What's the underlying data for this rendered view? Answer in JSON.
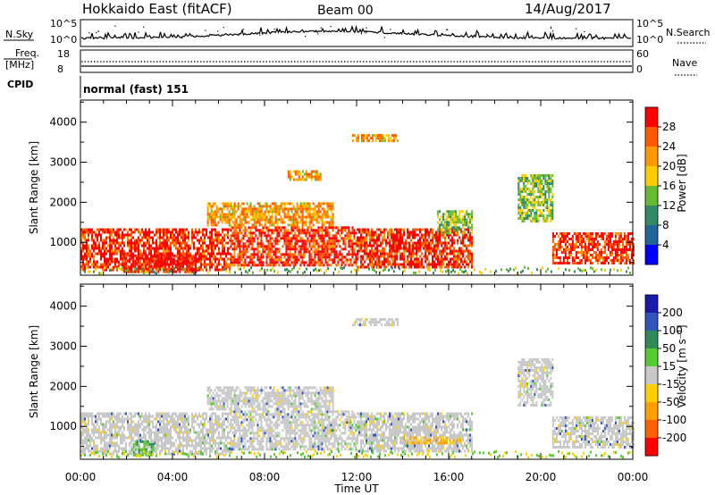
{
  "header": {
    "title": "Hokkaido East (fitACF)",
    "beam": "Beam 00",
    "date": "14/Aug/2017"
  },
  "status_panels": {
    "nsky_label": "N.Sky",
    "nsky_ticks": [
      "10^5",
      "10^0"
    ],
    "nsky_right_ticks": [
      "10^5",
      "10^0"
    ],
    "nsearch_label": "N.Search",
    "freq_label": "Freq.",
    "freq_unit": "[MHz]",
    "freq_ticks": [
      "18",
      "8"
    ],
    "nave_label": "Nave",
    "nave_ticks": [
      "60",
      "0"
    ],
    "cpid_label": "CPID",
    "cpid_value": "normal (fast) 151"
  },
  "colorbars": {
    "power": {
      "label": "Power [dB]",
      "ticks": [
        "28",
        "24",
        "20",
        "16",
        "12",
        "8",
        "4"
      ],
      "colors": [
        "#ff0000",
        "#ff5a00",
        "#ff9900",
        "#ffcc00",
        "#66bb33",
        "#338866",
        "#226699",
        "#0000ff"
      ]
    },
    "velocity": {
      "label": "Velocity [m s⁻¹]",
      "ticks": [
        "200",
        "100",
        "50",
        "15",
        "-15",
        "-50",
        "-100",
        "-200"
      ],
      "colors": [
        "#1a1aaa",
        "#3355bb",
        "#2e8b57",
        "#55cc33",
        "#c8c8c8",
        "#ffd000",
        "#ffa000",
        "#ff6000",
        "#ff0000"
      ]
    }
  },
  "chart_data": [
    {
      "type": "heatmap",
      "panel": "power",
      "ylabel": "Slant Range [km]",
      "xlabel": "",
      "ylim": [
        180,
        4550
      ],
      "xlim": [
        0,
        24
      ],
      "yticks": [
        "4000",
        "3000",
        "2000",
        "1000"
      ],
      "xticks": [],
      "colorbar": "Power [dB]",
      "echo_regions": [
        {
          "t0": 0.0,
          "t1": 6.5,
          "r0": 300,
          "r1": 1350,
          "level": "high"
        },
        {
          "t0": 6.5,
          "t1": 12.0,
          "r0": 400,
          "r1": 1400,
          "level": "high"
        },
        {
          "t0": 12.0,
          "t1": 17.0,
          "r0": 400,
          "r1": 1350,
          "level": "high"
        },
        {
          "t0": 20.5,
          "t1": 24.0,
          "r0": 450,
          "r1": 1250,
          "level": "high"
        },
        {
          "t0": 1.8,
          "t1": 5.0,
          "r0": 250,
          "r1": 700,
          "level": "max"
        },
        {
          "t0": 5.5,
          "t1": 11.0,
          "r0": 1400,
          "r1": 2000,
          "level": "mid"
        },
        {
          "t0": 9.0,
          "t1": 10.5,
          "r0": 2550,
          "r1": 2800,
          "level": "mid"
        },
        {
          "t0": 11.8,
          "t1": 13.8,
          "r0": 3550,
          "r1": 3700,
          "level": "mid"
        },
        {
          "t0": 15.5,
          "t1": 17.0,
          "r0": 1200,
          "r1": 1800,
          "level": "low"
        },
        {
          "t0": 19.0,
          "t1": 20.5,
          "r0": 1500,
          "r1": 2700,
          "level": "low"
        }
      ]
    },
    {
      "type": "heatmap",
      "panel": "velocity",
      "ylabel": "Slant Range [km]",
      "xlabel": "Time UT",
      "ylim": [
        180,
        4550
      ],
      "xlim": [
        0,
        24
      ],
      "yticks": [
        "4000",
        "3000",
        "2000",
        "1000"
      ],
      "xticks": [
        "00:00",
        "04:00",
        "08:00",
        "12:00",
        "16:00",
        "20:00",
        "00:00"
      ],
      "colorbar": "Velocity [m s⁻¹]",
      "echo_regions": [
        {
          "t0": 0.0,
          "t1": 6.5,
          "r0": 300,
          "r1": 1350,
          "level": "near-zero"
        },
        {
          "t0": 6.5,
          "t1": 12.0,
          "r0": 400,
          "r1": 1400,
          "level": "near-zero"
        },
        {
          "t0": 12.0,
          "t1": 17.0,
          "r0": 400,
          "r1": 1350,
          "level": "near-zero"
        },
        {
          "t0": 20.5,
          "t1": 24.0,
          "r0": 450,
          "r1": 1250,
          "level": "near-zero"
        },
        {
          "t0": 2.2,
          "t1": 3.2,
          "r0": 250,
          "r1": 650,
          "level": "positive"
        },
        {
          "t0": 14.0,
          "t1": 16.5,
          "r0": 600,
          "r1": 750,
          "level": "negative"
        },
        {
          "t0": 5.5,
          "t1": 11.0,
          "r0": 1400,
          "r1": 2000,
          "level": "near-zero"
        },
        {
          "t0": 11.8,
          "t1": 13.8,
          "r0": 3550,
          "r1": 3700,
          "level": "near-zero"
        },
        {
          "t0": 19.0,
          "t1": 20.5,
          "r0": 1500,
          "r1": 2700,
          "level": "near-zero"
        }
      ]
    }
  ]
}
